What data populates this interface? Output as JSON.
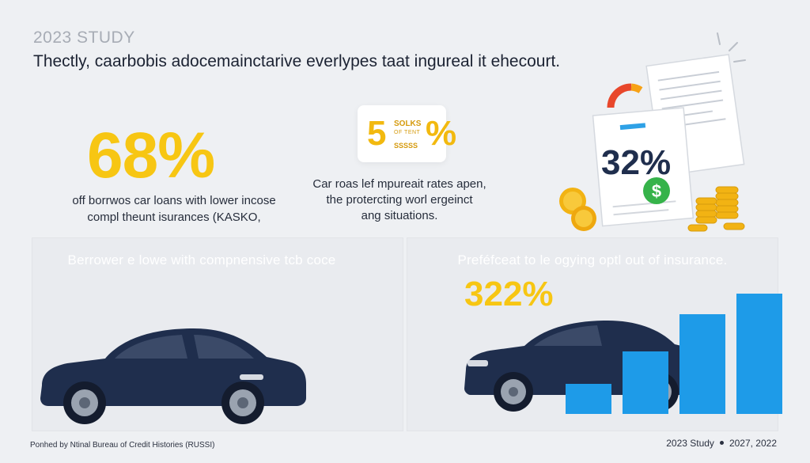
{
  "header": {
    "eyebrow": "2023 STUDY",
    "headline": "Thectly, caarbobis adocemainctarive everlypes taat ingureal it ehecourt."
  },
  "stat_left": {
    "value": "68%",
    "caption_line1": "off borrwos car loans with lower incose",
    "caption_line2": "compl theunt isurances (KASKO,"
  },
  "stat_mid": {
    "big": "5",
    "pct": "%",
    "label1": "SOLKS",
    "label2": "OF TENT",
    "label3": "SSSSS",
    "caption_line1": "Car roas lef mpureait rates apen,",
    "caption_line2": "the protercting worl ergeinct",
    "caption_line3": "ang situations."
  },
  "document_graphic": {
    "value": "32%",
    "dollar": "$"
  },
  "panel_left": {
    "title": "Berrower e lowe with compnensive tcb coce"
  },
  "panel_right": {
    "title": "Preféfceat to le ogying optl out of insurance.",
    "stat": "322%",
    "bar_levels": [
      0.25,
      0.52,
      0.83,
      1.0
    ]
  },
  "footer": {
    "source": "Ponhed by Ntinal Bureau of Credit Histories (RUSSI)",
    "left_label": "2023 Study",
    "right_label": "2027, 2022"
  },
  "colors": {
    "yellow": "#f7c613",
    "navy": "#1f2e4d",
    "blue": "#1e9be8",
    "green": "#36b34a",
    "background": "#eef0f3"
  }
}
